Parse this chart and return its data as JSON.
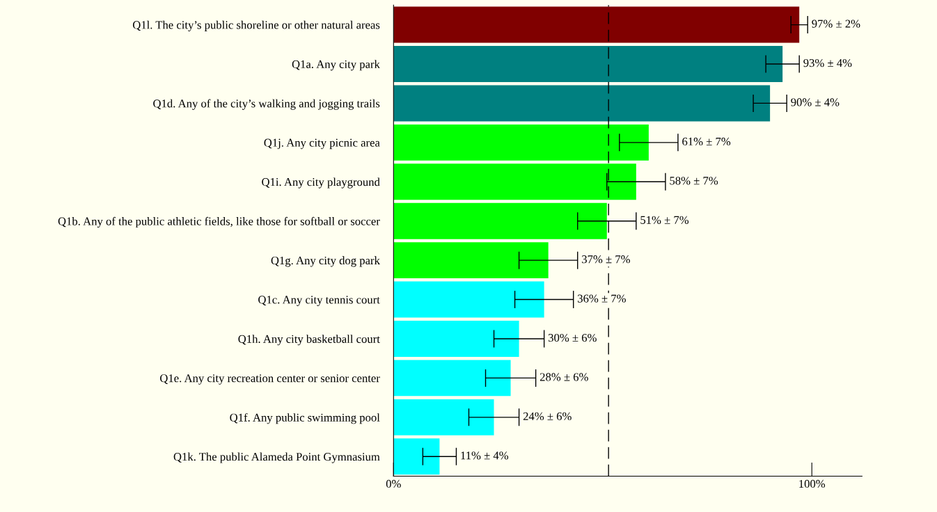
{
  "chart_data": {
    "type": "bar",
    "orientation": "horizontal",
    "categories": [
      "Q1l. The city’s public shoreline or other natural areas",
      "Q1a. Any city park",
      "Q1d. Any of the city’s walking and jogging trails",
      "Q1j. Any city picnic area",
      "Q1i. Any city playground",
      "Q1b. Any of the public athletic fields, like those for softball or soccer",
      "Q1g. Any city dog park",
      "Q1c. Any city tennis court",
      "Q1h. Any city basketball court",
      "Q1e. Any city recreation center or senior center",
      "Q1f. Any public swimming pool",
      "Q1k. The public Alameda Point Gymnasium"
    ],
    "values": [
      97,
      93,
      90,
      61,
      58,
      51,
      37,
      36,
      30,
      28,
      24,
      11
    ],
    "errors": [
      2,
      4,
      4,
      7,
      7,
      7,
      7,
      7,
      6,
      6,
      6,
      4
    ],
    "value_labels": [
      "97% ± 2%",
      "93% ± 4%",
      "90% ± 4%",
      "61% ± 7%",
      "58% ± 7%",
      "51% ± 7%",
      "37% ± 7%",
      "36% ± 7%",
      "30% ± 6%",
      "28% ± 6%",
      "24% ± 6%",
      "11% ± 4%"
    ],
    "colors": [
      "#800000",
      "#008080",
      "#008080",
      "#00ff00",
      "#00ff00",
      "#00ff00",
      "#00ff00",
      "#00ffff",
      "#00ffff",
      "#00ffff",
      "#00ffff",
      "#00ffff"
    ],
    "xlim": [
      0,
      112
    ],
    "xticks": [
      {
        "value": 0,
        "label": "0%"
      },
      {
        "value": 100,
        "label": "100%"
      }
    ],
    "ref_lines": [
      {
        "axis": "x",
        "value": 51.4,
        "color": "#000000",
        "line_style": "dashed"
      }
    ],
    "grid": false
  }
}
